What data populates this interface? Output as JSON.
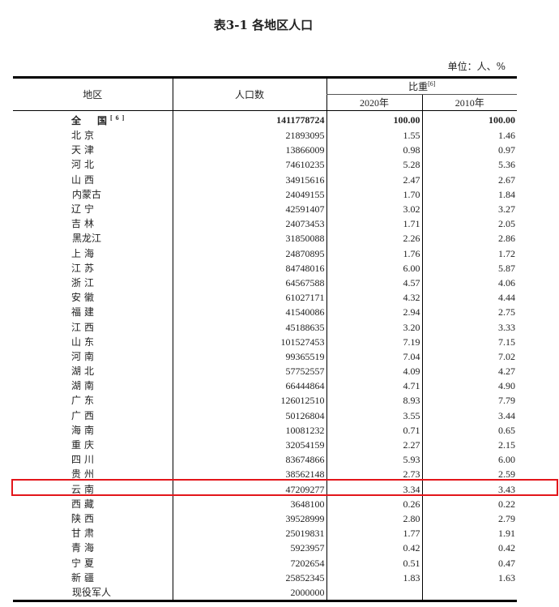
{
  "title": "表3-1 各地区人口",
  "unit": "单位：人、%",
  "headers": {
    "region": "地区",
    "population": "人口数",
    "share": "比重",
    "share_note": "[6]",
    "y2020": "2020年",
    "y2010": "2010年"
  },
  "total": {
    "name": "全　国",
    "note": "[6]",
    "population": "1411778724",
    "s2020": "100.00",
    "s2010": "100.00"
  },
  "rows": [
    {
      "name": "北京",
      "population": "21893095",
      "s2020": "1.55",
      "s2010": "1.46"
    },
    {
      "name": "天津",
      "population": "13866009",
      "s2020": "0.98",
      "s2010": "0.97"
    },
    {
      "name": "河北",
      "population": "74610235",
      "s2020": "5.28",
      "s2010": "5.36"
    },
    {
      "name": "山西",
      "population": "34915616",
      "s2020": "2.47",
      "s2010": "2.67"
    },
    {
      "name": "内蒙古",
      "population": "24049155",
      "s2020": "1.70",
      "s2010": "1.84"
    },
    {
      "name": "辽宁",
      "population": "42591407",
      "s2020": "3.02",
      "s2010": "3.27"
    },
    {
      "name": "吉林",
      "population": "24073453",
      "s2020": "1.71",
      "s2010": "2.05"
    },
    {
      "name": "黑龙江",
      "population": "31850088",
      "s2020": "2.26",
      "s2010": "2.86"
    },
    {
      "name": "上海",
      "population": "24870895",
      "s2020": "1.76",
      "s2010": "1.72"
    },
    {
      "name": "江苏",
      "population": "84748016",
      "s2020": "6.00",
      "s2010": "5.87"
    },
    {
      "name": "浙江",
      "population": "64567588",
      "s2020": "4.57",
      "s2010": "4.06"
    },
    {
      "name": "安徽",
      "population": "61027171",
      "s2020": "4.32",
      "s2010": "4.44"
    },
    {
      "name": "福建",
      "population": "41540086",
      "s2020": "2.94",
      "s2010": "2.75"
    },
    {
      "name": "江西",
      "population": "45188635",
      "s2020": "3.20",
      "s2010": "3.33"
    },
    {
      "name": "山东",
      "population": "101527453",
      "s2020": "7.19",
      "s2010": "7.15"
    },
    {
      "name": "河南",
      "population": "99365519",
      "s2020": "7.04",
      "s2010": "7.02"
    },
    {
      "name": "湖北",
      "population": "57752557",
      "s2020": "4.09",
      "s2010": "4.27"
    },
    {
      "name": "湖南",
      "population": "66444864",
      "s2020": "4.71",
      "s2010": "4.90"
    },
    {
      "name": "广东",
      "population": "126012510",
      "s2020": "8.93",
      "s2010": "7.79"
    },
    {
      "name": "广西",
      "population": "50126804",
      "s2020": "3.55",
      "s2010": "3.44"
    },
    {
      "name": "海南",
      "population": "10081232",
      "s2020": "0.71",
      "s2010": "0.65"
    },
    {
      "name": "重庆",
      "population": "32054159",
      "s2020": "2.27",
      "s2010": "2.15"
    },
    {
      "name": "四川",
      "population": "83674866",
      "s2020": "5.93",
      "s2010": "6.00"
    },
    {
      "name": "贵州",
      "population": "38562148",
      "s2020": "2.73",
      "s2010": "2.59"
    },
    {
      "name": "云南",
      "population": "47209277",
      "s2020": "3.34",
      "s2010": "3.43",
      "highlighted": true
    },
    {
      "name": "西藏",
      "population": "3648100",
      "s2020": "0.26",
      "s2010": "0.22"
    },
    {
      "name": "陕西",
      "population": "39528999",
      "s2020": "2.80",
      "s2010": "2.79"
    },
    {
      "name": "甘肃",
      "population": "25019831",
      "s2020": "1.77",
      "s2010": "1.91"
    },
    {
      "name": "青海",
      "population": "5923957",
      "s2020": "0.42",
      "s2010": "0.42"
    },
    {
      "name": "宁夏",
      "population": "7202654",
      "s2020": "0.51",
      "s2010": "0.47"
    },
    {
      "name": "新疆",
      "population": "25852345",
      "s2020": "1.83",
      "s2010": "1.63"
    },
    {
      "name": "现役军人",
      "population": "2000000",
      "s2020": "",
      "s2010": ""
    }
  ],
  "highlight_color": "#e3161b"
}
